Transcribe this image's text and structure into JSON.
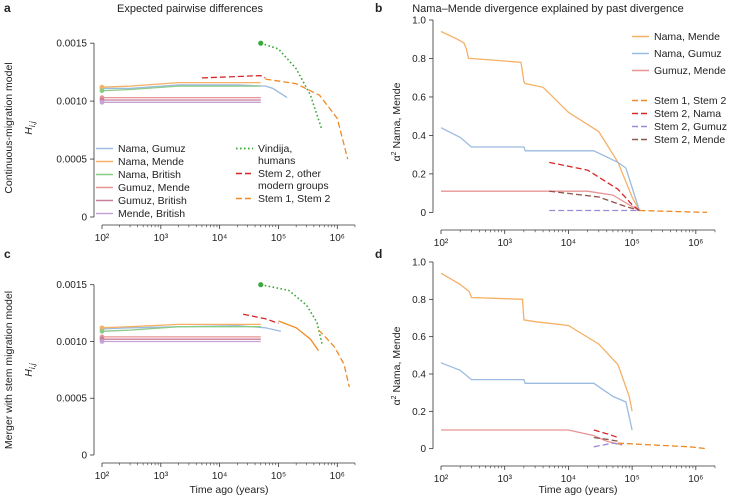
{
  "figure": {
    "title_left": "Expected pairwise differences",
    "title_right": "Nama–Mende divergence explained by past divergence",
    "row_labels": [
      "Continuous-migration model",
      "Merger with stem migration model"
    ],
    "xlabel": "Time ago (years)"
  },
  "chart_data": [
    {
      "panel": "a",
      "type": "line",
      "xscale": "log",
      "xlim": [
        100,
        2000000
      ],
      "ylim": [
        0,
        0.0017
      ],
      "ylabel": "H_i,j",
      "xlabel": "Time ago (years)",
      "xticks": [
        100,
        1000,
        10000,
        100000,
        1000000
      ],
      "xtick_labels": [
        "10²",
        "10³",
        "10⁴",
        "10⁵",
        "10⁶"
      ],
      "yticks": [
        0,
        0.0005,
        0.001,
        0.0015
      ],
      "ytick_labels": [
        "0",
        "0.0005",
        "0.0010",
        "0.0015"
      ],
      "series": [
        {
          "name": "Nama, Gumuz",
          "color": "#9bbbe0",
          "dash": "solid",
          "x": [
            100,
            300,
            2000,
            20000,
            60000,
            80000,
            140000
          ],
          "y": [
            0.00111,
            0.00111,
            0.00114,
            0.00114,
            0.00113,
            0.00111,
            0.00103
          ]
        },
        {
          "name": "Nama, Mende",
          "color": "#f5b066",
          "dash": "solid",
          "x": [
            100,
            300,
            2000,
            50000
          ],
          "y": [
            0.00112,
            0.00113,
            0.00116,
            0.00116
          ]
        },
        {
          "name": "Nama, British",
          "color": "#8ccc8a",
          "dash": "solid",
          "x": [
            100,
            300,
            2000,
            50000
          ],
          "y": [
            0.00109,
            0.0011,
            0.00113,
            0.00113
          ]
        },
        {
          "name": "Gumuz, Mende",
          "color": "#e89494",
          "dash": "solid",
          "x": [
            100,
            50000
          ],
          "y": [
            0.00103,
            0.00103
          ]
        },
        {
          "name": "Gumuz, British",
          "color": "#c87e9a",
          "dash": "solid",
          "x": [
            100,
            50000
          ],
          "y": [
            0.00101,
            0.00101
          ]
        },
        {
          "name": "Mende, British",
          "color": "#c6a3d6",
          "dash": "solid",
          "x": [
            100,
            50000
          ],
          "y": [
            0.00099,
            0.00099
          ]
        },
        {
          "name": "Vindija, humans",
          "color": "#3aa83a",
          "dash": "dotted",
          "x": [
            50000,
            100000,
            200000,
            350000,
            550000
          ],
          "y": [
            0.0015,
            0.00145,
            0.00128,
            0.00105,
            0.00075
          ]
        },
        {
          "name": "Stem 2, other modern groups",
          "color": "#d62728",
          "dash": "dashed",
          "x": [
            5000,
            50000,
            60000
          ],
          "y": [
            0.0012,
            0.00122,
            0.0012
          ]
        },
        {
          "name": "Stem 1, Stem 2",
          "color": "#f08a24",
          "dash": "dashed",
          "x": [
            60000,
            200000,
            500000,
            1000000,
            1500000
          ],
          "y": [
            0.00119,
            0.00115,
            0.00105,
            0.00085,
            0.0005
          ]
        }
      ],
      "legend": [
        "Nama, Gumuz",
        "Nama, Mende",
        "Nama, British",
        "Gumuz, Mende",
        "Gumuz, British",
        "Mende, British",
        "Vindija, humans",
        "Stem 2, other modern groups",
        "Stem 1, Stem 2"
      ],
      "legend_position": "lower-left"
    },
    {
      "panel": "b",
      "type": "line",
      "xscale": "log",
      "xlim": [
        100,
        2000000
      ],
      "ylim": [
        -0.05,
        1.0
      ],
      "ylabel": "α² Nama, Mende",
      "xlabel": "Time ago (years)",
      "xticks": [
        100,
        1000,
        10000,
        100000,
        1000000
      ],
      "xtick_labels": [
        "10²",
        "10³",
        "10⁴",
        "10⁵",
        "10⁶"
      ],
      "yticks": [
        0,
        0.2,
        0.4,
        0.6,
        0.8,
        1.0
      ],
      "ytick_labels": [
        "0",
        "0.2",
        "0.4",
        "0.6",
        "0.8",
        "1.0"
      ],
      "series": [
        {
          "name": "Nama, Mende",
          "color": "#f5b066",
          "dash": "solid",
          "x": [
            100,
            180,
            230,
            250,
            270,
            300,
            1800,
            2000,
            2100,
            4000,
            10000,
            30000,
            60000,
            100000,
            130000
          ],
          "y": [
            0.94,
            0.9,
            0.88,
            0.85,
            0.8,
            0.8,
            0.78,
            0.68,
            0.67,
            0.65,
            0.52,
            0.42,
            0.26,
            0.08,
            0.01
          ]
        },
        {
          "name": "Nama, Gumuz",
          "color": "#9bbbe0",
          "dash": "solid",
          "x": [
            100,
            200,
            300,
            2000,
            2100,
            25000,
            60000,
            80000,
            130000
          ],
          "y": [
            0.44,
            0.39,
            0.34,
            0.34,
            0.32,
            0.32,
            0.26,
            0.23,
            0.01
          ]
        },
        {
          "name": "Gumuz, Mende",
          "color": "#e89494",
          "dash": "solid",
          "x": [
            100,
            20000,
            50000,
            100000,
            130000
          ],
          "y": [
            0.11,
            0.11,
            0.09,
            0.03,
            0.01
          ]
        },
        {
          "name": "Stem 2, Nama",
          "color": "#d62728",
          "dash": "dashed",
          "x": [
            5000,
            20000,
            60000,
            100000,
            130000
          ],
          "y": [
            0.26,
            0.22,
            0.12,
            0.04,
            0.01
          ]
        },
        {
          "name": "Stem 2, Mende",
          "color": "#8c564b",
          "dash": "dashed",
          "x": [
            5000,
            30000,
            80000,
            130000
          ],
          "y": [
            0.11,
            0.08,
            0.03,
            0.01
          ]
        },
        {
          "name": "Stem 2, Gumuz",
          "color": "#9b8bd6",
          "dash": "dashed",
          "x": [
            5000,
            130000
          ],
          "y": [
            0.01,
            0.01
          ]
        },
        {
          "name": "Stem 1, Stem 2",
          "color": "#f08a24",
          "dash": "dashed",
          "x": [
            130000,
            1500000
          ],
          "y": [
            0.01,
            0.0
          ]
        }
      ],
      "legend_top": [
        "Nama, Mende",
        "Nama, Gumuz",
        "Gumuz, Mende"
      ],
      "legend_bottom": [
        "Stem 1, Stem 2",
        "Stem 2, Nama",
        "Stem 2, Gumuz",
        "Stem 2, Mende"
      ],
      "legend_position": "right"
    },
    {
      "panel": "c",
      "type": "line",
      "xscale": "log",
      "xlim": [
        100,
        2000000
      ],
      "ylim": [
        0,
        0.0017
      ],
      "ylabel": "H_i,j",
      "xlabel": "Time ago (years)",
      "xticks": [
        100,
        1000,
        10000,
        100000,
        1000000
      ],
      "xtick_labels": [
        "10²",
        "10³",
        "10⁴",
        "10⁵",
        "10⁶"
      ],
      "yticks": [
        0,
        0.0005,
        0.001,
        0.0015
      ],
      "ytick_labels": [
        "0",
        "0.0005",
        "0.0010",
        "0.0015"
      ],
      "series": [
        {
          "name": "Nama, Gumuz",
          "color": "#9bbbe0",
          "dash": "solid",
          "x": [
            100,
            300,
            20000,
            60000,
            110000
          ],
          "y": [
            0.00111,
            0.00112,
            0.00114,
            0.00112,
            0.00109
          ]
        },
        {
          "name": "Nama, Mende",
          "color": "#f5b066",
          "dash": "solid",
          "x": [
            100,
            300,
            2000,
            50000
          ],
          "y": [
            0.00112,
            0.00113,
            0.00115,
            0.00115
          ]
        },
        {
          "name": "Nama, British",
          "color": "#8ccc8a",
          "dash": "solid",
          "x": [
            100,
            300,
            2000,
            50000
          ],
          "y": [
            0.00109,
            0.0011,
            0.00113,
            0.00113
          ]
        },
        {
          "name": "Gumuz, Mende",
          "color": "#e89494",
          "dash": "solid",
          "x": [
            100,
            50000
          ],
          "y": [
            0.00104,
            0.00104
          ]
        },
        {
          "name": "Gumuz, British",
          "color": "#c87e9a",
          "dash": "solid",
          "x": [
            100,
            50000
          ],
          "y": [
            0.00102,
            0.00102
          ]
        },
        {
          "name": "Mende, British",
          "color": "#c6a3d6",
          "dash": "solid",
          "x": [
            100,
            50000
          ],
          "y": [
            0.001,
            0.001
          ]
        },
        {
          "name": "Vindija, humans",
          "color": "#3aa83a",
          "dash": "dotted",
          "x": [
            50000,
            150000,
            300000,
            450000,
            550000
          ],
          "y": [
            0.0015,
            0.00145,
            0.00132,
            0.00117,
            0.00098
          ]
        },
        {
          "name": "Stem 2, other modern groups",
          "color": "#d62728",
          "dash": "dashed",
          "x": [
            25000,
            60000,
            100000
          ],
          "y": [
            0.00124,
            0.0012,
            0.00116
          ]
        },
        {
          "name": "Stem 1, Stem 2 (solid)",
          "color": "#f08a24",
          "dash": "solid",
          "x": [
            100000,
            200000,
            350000,
            480000
          ],
          "y": [
            0.00118,
            0.00112,
            0.00102,
            0.00092
          ]
        },
        {
          "name": "Stem 1, Stem 2",
          "color": "#f08a24",
          "dash": "dashed",
          "x": [
            480000,
            600000,
            900000,
            1300000,
            1600000
          ],
          "y": [
            0.0011,
            0.00105,
            0.00095,
            0.0008,
            0.0006
          ]
        }
      ]
    },
    {
      "panel": "d",
      "type": "line",
      "xscale": "log",
      "xlim": [
        100,
        2000000
      ],
      "ylim": [
        -0.05,
        1.0
      ],
      "ylabel": "α² Nama, Mende",
      "xlabel": "Time ago (years)",
      "xticks": [
        100,
        1000,
        10000,
        100000,
        1000000
      ],
      "xtick_labels": [
        "10²",
        "10³",
        "10⁴",
        "10⁵",
        "10⁶"
      ],
      "yticks": [
        0,
        0.2,
        0.4,
        0.6,
        0.8,
        1.0
      ],
      "ytick_labels": [
        "0",
        "0.2",
        "0.4",
        "0.6",
        "0.8",
        "1.0"
      ],
      "series": [
        {
          "name": "Nama, Mende",
          "color": "#f5b066",
          "dash": "solid",
          "x": [
            100,
            200,
            280,
            300,
            1900,
            2000,
            3000,
            10000,
            30000,
            60000,
            90000,
            100000
          ],
          "y": [
            0.94,
            0.88,
            0.84,
            0.81,
            0.8,
            0.69,
            0.68,
            0.66,
            0.56,
            0.45,
            0.28,
            0.2
          ]
        },
        {
          "name": "Nama, Gumuz",
          "color": "#9bbbe0",
          "dash": "solid",
          "x": [
            100,
            200,
            300,
            2000,
            2100,
            25000,
            50000,
            80000,
            100000
          ],
          "y": [
            0.46,
            0.42,
            0.37,
            0.37,
            0.35,
            0.35,
            0.28,
            0.25,
            0.1
          ]
        },
        {
          "name": "Gumuz, Mende",
          "color": "#e89494",
          "dash": "solid",
          "x": [
            100,
            5000,
            10000,
            25000,
            40000,
            70000
          ],
          "y": [
            0.1,
            0.1,
            0.1,
            0.07,
            0.04,
            0.02
          ]
        },
        {
          "name": "Stem 2, Nama",
          "color": "#d62728",
          "dash": "dashed",
          "x": [
            25000,
            40000,
            60000
          ],
          "y": [
            0.1,
            0.08,
            0.06
          ]
        },
        {
          "name": "Stem 2, Mende",
          "color": "#8c564b",
          "dash": "dashed",
          "x": [
            25000,
            40000,
            60000
          ],
          "y": [
            0.06,
            0.05,
            0.04
          ]
        },
        {
          "name": "Stem 2, Gumuz",
          "color": "#9b8bd6",
          "dash": "dashed",
          "x": [
            25000,
            50000,
            70000
          ],
          "y": [
            0.01,
            0.03,
            0.02
          ]
        },
        {
          "name": "Stem 1, Stem 2",
          "color": "#f08a24",
          "dash": "dashed",
          "x": [
            60000,
            200000,
            800000,
            1500000
          ],
          "y": [
            0.03,
            0.02,
            0.01,
            0.0
          ]
        }
      ]
    }
  ]
}
